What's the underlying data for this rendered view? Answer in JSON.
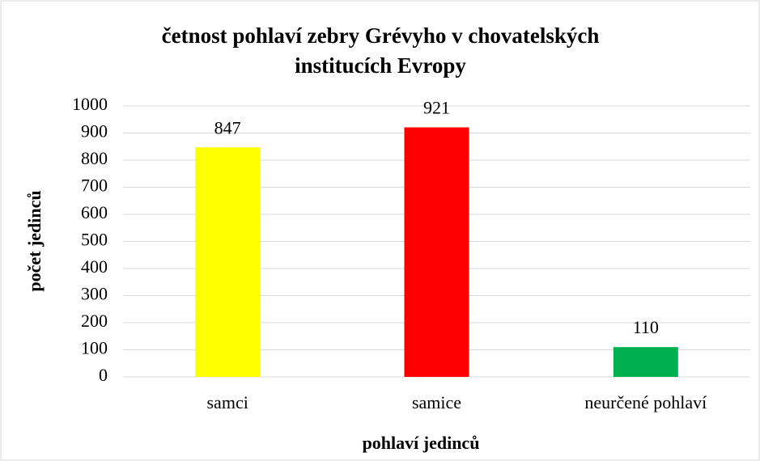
{
  "chart_data": {
    "type": "bar",
    "title": "četnost pohlaví zebry Grévyho v chovatelských institucích Evropy",
    "x_label": "pohlaví jedinců",
    "y_label": "počet jedinců",
    "categories": [
      "samci",
      "samice",
      "neurčené pohlaví"
    ],
    "values": [
      847,
      921,
      110
    ],
    "colors": [
      "#ffff00",
      "#ff0000",
      "#00b050"
    ],
    "ylim": [
      0,
      1000
    ],
    "yticks": [
      0,
      100,
      200,
      300,
      400,
      500,
      600,
      700,
      800,
      900,
      1000
    ],
    "grid": true
  }
}
